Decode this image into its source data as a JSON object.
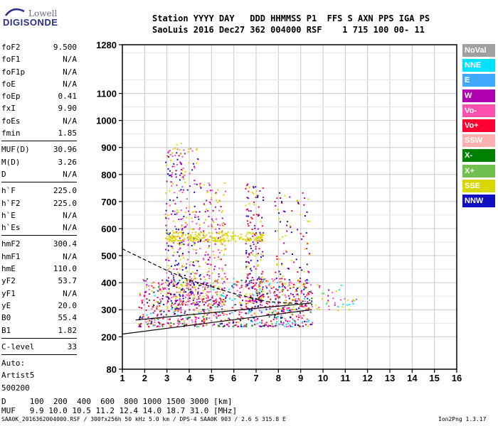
{
  "logo": {
    "line1": "Lowell",
    "line2": "DIGISONDE"
  },
  "header": {
    "line1": "Station YYYY DAY   DDD HHMMSS P1  FFS S AXN PPS IGA PS",
    "line2": "SaoLuis 2016 Dec27 362 004000 RSF    1 715 100 00- 11"
  },
  "params": [
    {
      "label": "foF2",
      "value": "9.500"
    },
    {
      "label": "foF1",
      "value": "N/A"
    },
    {
      "label": "foF1p",
      "value": "N/A"
    },
    {
      "label": "foE",
      "value": "N/A"
    },
    {
      "label": "foEp",
      "value": "0.41"
    },
    {
      "label": "fxI",
      "value": "9.90"
    },
    {
      "label": "foEs",
      "value": "N/A"
    },
    {
      "label": "fmin",
      "value": "1.85"
    },
    {
      "sep": true
    },
    {
      "label": "MUF(D)",
      "value": "30.96"
    },
    {
      "label": "M(D)",
      "value": "3.26"
    },
    {
      "label": "D",
      "value": "N/A"
    },
    {
      "sep": true
    },
    {
      "label": "h`F",
      "value": "225.0"
    },
    {
      "label": "h`F2",
      "value": "225.0"
    },
    {
      "label": "h`E",
      "value": "N/A"
    },
    {
      "label": "h`Es",
      "value": "N/A"
    },
    {
      "sep": true
    },
    {
      "label": "hmF2",
      "value": "300.4"
    },
    {
      "label": "hmF1",
      "value": "N/A"
    },
    {
      "label": "hmE",
      "value": "110.0"
    },
    {
      "label": "yF2",
      "value": "53.7"
    },
    {
      "label": "yF1",
      "value": "N/A"
    },
    {
      "label": "yE",
      "value": "20.0"
    },
    {
      "label": "B0",
      "value": "55.4"
    },
    {
      "label": "B1",
      "value": "1.82"
    },
    {
      "sep": true
    },
    {
      "label": "C-level",
      "value": "33"
    },
    {
      "sep": true
    },
    {
      "label": "Auto:",
      "value": ""
    },
    {
      "label": "Artist5",
      "value": ""
    },
    {
      "label": "500200",
      "value": ""
    }
  ],
  "legend": [
    {
      "label": "NoVal",
      "color": "#a0a0a0"
    },
    {
      "label": "NNE",
      "color": "#00e0ff"
    },
    {
      "label": "E",
      "color": "#40a8ff"
    },
    {
      "label": "W",
      "color": "#b000b0"
    },
    {
      "label": "Vo-",
      "color": "#ff50b0"
    },
    {
      "label": "Vo+",
      "color": "#ff0030"
    },
    {
      "label": "SSW",
      "color": "#ffb0b0"
    },
    {
      "label": "X-",
      "color": "#008000"
    },
    {
      "label": "X+",
      "color": "#70c050"
    },
    {
      "label": "SSE",
      "color": "#d8d800"
    },
    {
      "label": "NNW",
      "color": "#1010c0"
    }
  ],
  "bottom": {
    "d_line": "D     100  200  400  600  800 1000 1500 3000 [km]",
    "muf_line": "MUF   9.9 10.0 10.5 11.2 12.4 14.0 18.7 31.0 [MHz]"
  },
  "footer": {
    "left": "SAA0K_2016362004000.RSF / 300fx256h 50 kHz 5.0 km / DPS-4 SAA0K 903 / 2.6 S 315.8 E",
    "right": "Ion2Png 1.3.17"
  },
  "chart_data": {
    "type": "scatter",
    "xlabel": "",
    "ylabel": "",
    "xlim": [
      1,
      16
    ],
    "ylim": [
      80,
      1280
    ],
    "x_ticks": [
      1,
      2,
      3,
      4,
      5,
      6,
      7,
      8,
      9,
      10,
      11,
      12,
      13,
      14,
      15,
      16
    ],
    "y_ticks": [
      80,
      200,
      300,
      400,
      500,
      600,
      700,
      800,
      900,
      1000,
      1100,
      1280
    ],
    "grid": true,
    "traces": [
      {
        "name": "trace-lower",
        "color": "#000000",
        "x": [
          1.0,
          9.5
        ],
        "y": [
          210,
          300
        ]
      },
      {
        "name": "trace-upper",
        "color": "#000000",
        "x": [
          1.6,
          9.5
        ],
        "y": [
          262,
          325
        ]
      },
      {
        "name": "trace-dashed",
        "color": "#000000",
        "dash": true,
        "x": [
          1.0,
          3.0,
          4.0,
          6.0,
          7.5,
          9.0
        ],
        "y": [
          525,
          445,
          410,
          360,
          330,
          322
        ]
      }
    ],
    "clusters": [
      {
        "x_range": [
          1.7,
          9.5
        ],
        "y_range": [
          240,
          420
        ],
        "density": 900,
        "colors": [
          "#ff50b0",
          "#b000b0",
          "#ff0030",
          "#d8d800",
          "#1010c0",
          "#00e0ff",
          "#008000",
          "#ff50b0",
          "#ff0030"
        ]
      },
      {
        "x_range": [
          2.9,
          3.7
        ],
        "y_range": [
          300,
          920
        ],
        "density": 230,
        "colors": [
          "#d8d800",
          "#b000b0",
          "#ff50b0",
          "#1010c0"
        ]
      },
      {
        "x_range": [
          3.5,
          4.5
        ],
        "y_range": [
          320,
          900
        ],
        "density": 220,
        "colors": [
          "#d8d800",
          "#b000b0",
          "#1010c0",
          "#ff50b0"
        ]
      },
      {
        "x_range": [
          4.6,
          5.6
        ],
        "y_range": [
          320,
          780
        ],
        "density": 180,
        "colors": [
          "#d8d800",
          "#b000b0",
          "#ff50b0"
        ]
      },
      {
        "x_range": [
          6.5,
          7.3
        ],
        "y_range": [
          330,
          780
        ],
        "density": 180,
        "colors": [
          "#d8d800",
          "#b000b0",
          "#ff0030",
          "#1010c0"
        ]
      },
      {
        "x_range": [
          2.9,
          7.3
        ],
        "y_range": [
          555,
          590
        ],
        "density": 220,
        "colors": [
          "#d8d800"
        ]
      },
      {
        "x_range": [
          7.8,
          9.4
        ],
        "y_range": [
          300,
          740
        ],
        "density": 140,
        "colors": [
          "#b000b0",
          "#ff0030",
          "#1010c0",
          "#d8d800"
        ]
      },
      {
        "x_range": [
          9.5,
          11.5
        ],
        "y_range": [
          300,
          400
        ],
        "density": 40,
        "colors": [
          "#d8d800",
          "#ff50b0",
          "#b000b0",
          "#00e0ff"
        ]
      }
    ]
  }
}
